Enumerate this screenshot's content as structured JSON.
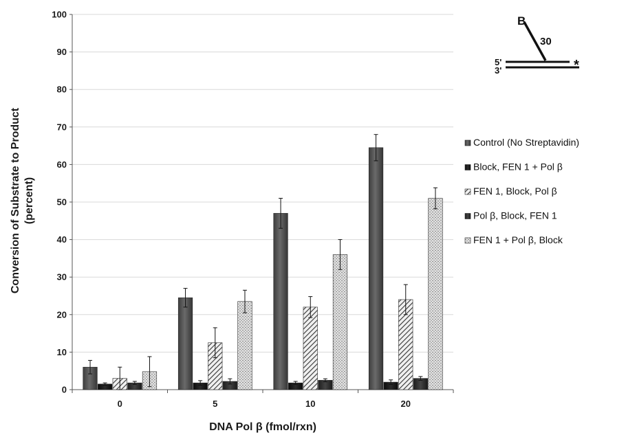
{
  "chart_data": {
    "type": "bar",
    "title": "",
    "xlabel": "DNA Pol β (fmol/rxn)",
    "ylabel_line1": "Conversion of Substrate to Product",
    "ylabel_line2": "(percent)",
    "ylim": [
      0,
      100
    ],
    "yticks": [
      "0",
      "10",
      "20",
      "30",
      "40",
      "50",
      "60",
      "70",
      "80",
      "90",
      "100"
    ],
    "categories": [
      "0",
      "5",
      "10",
      "20"
    ],
    "grid": true,
    "legend_position": "right",
    "series": [
      {
        "name": "Control (No Streptavidin)",
        "pattern": "solid-dark-gray",
        "values": [
          6,
          24.5,
          47,
          64.5
        ],
        "errors": [
          1.8,
          2.5,
          4.0,
          3.5
        ]
      },
      {
        "name": "Block, FEN 1 + Pol β",
        "pattern": "solid-black",
        "values": [
          1.5,
          1.8,
          1.8,
          2.0
        ],
        "errors": [
          0.3,
          0.6,
          0.4,
          0.6
        ]
      },
      {
        "name": "FEN 1, Block, Pol β",
        "pattern": "diagonal-hatch",
        "values": [
          3,
          12.5,
          22,
          24
        ],
        "errors": [
          3.0,
          4.0,
          2.8,
          4.0
        ]
      },
      {
        "name": "Pol β, Block, FEN 1",
        "pattern": "solid-charcoal",
        "values": [
          1.8,
          2.2,
          2.5,
          3.0
        ],
        "errors": [
          0.4,
          0.7,
          0.4,
          0.5
        ]
      },
      {
        "name": "FEN 1 + Pol β, Block",
        "pattern": "light-dotted",
        "values": [
          4.8,
          23.5,
          36,
          51
        ],
        "errors": [
          4.0,
          3.0,
          4.0,
          2.8
        ]
      }
    ]
  },
  "substrate_diagram": {
    "biotin_label": "B",
    "flap_length_label": "30",
    "five_prime_label": "5'",
    "three_prime_label": "3'",
    "label_marker": "*"
  },
  "colors": {
    "control": "#4a4a4a",
    "block_first": "#111111",
    "hatch_fg": "#3a3a3a",
    "pol_first": "#2a2a2a",
    "dotted_bg": "#dcdcdc",
    "dotted_fg": "#8c8c8c",
    "grid": "#d8d8d8",
    "axis": "#555555"
  }
}
